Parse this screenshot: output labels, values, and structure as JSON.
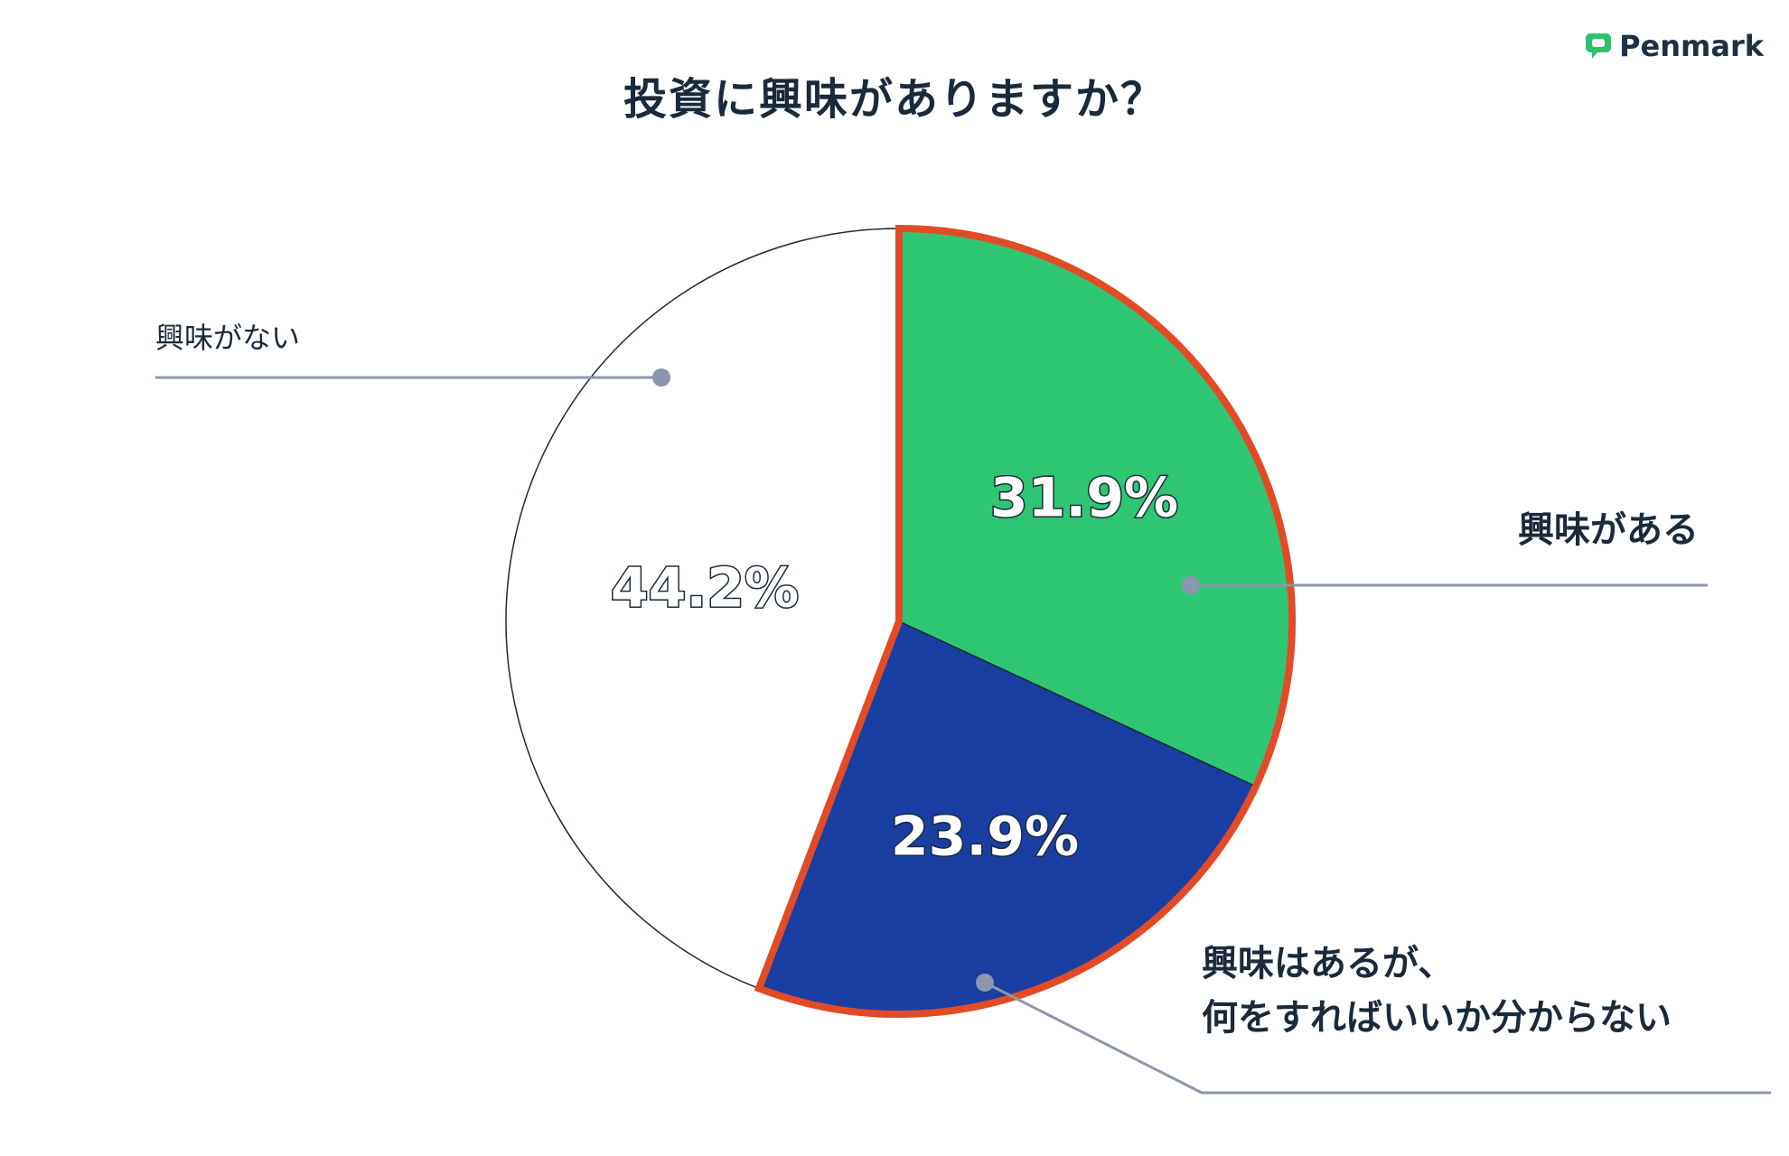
{
  "title": "投資に興味がありますか？",
  "brand": {
    "name": "Penmark",
    "icon": "speech-bubble-icon",
    "color": "#2dc26e"
  },
  "chart_data": {
    "type": "pie",
    "start_angle_deg": 0,
    "direction": "clockwise",
    "slices": [
      {
        "label_lines": [
          "興味がある"
        ],
        "value": 31.9,
        "value_label": "31.9%",
        "color": "#2fc673",
        "text_color": "#ffffff",
        "highlighted": true
      },
      {
        "label_lines": [
          "興味はあるが、",
          "何をすればいいか分からない"
        ],
        "value": 23.9,
        "value_label": "23.9%",
        "color": "#1a3fa3",
        "text_color": "#ffffff",
        "highlighted": true
      },
      {
        "label_lines": [
          "興味がない"
        ],
        "value": 44.2,
        "value_label": "44.2%",
        "color": "#ffffff",
        "text_color": "#ffffff",
        "highlighted": false
      }
    ],
    "highlight_color": "#e24b26",
    "leader_color": "#8a96ad"
  }
}
